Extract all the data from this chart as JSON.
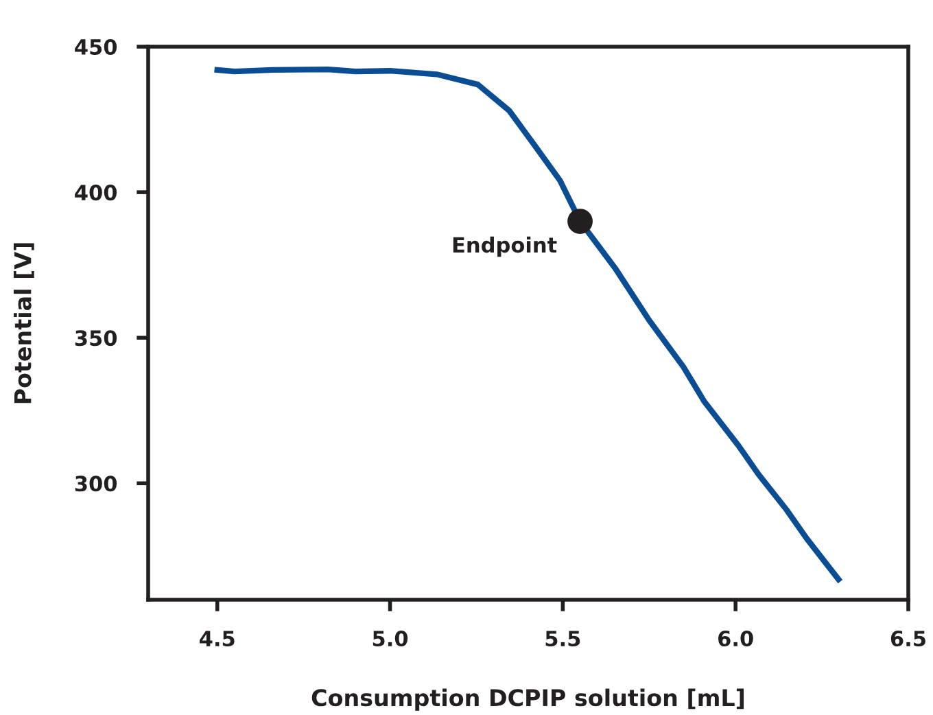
{
  "chart_data": {
    "type": "line",
    "xlabel": "Consumption DCPIP solution [mL]",
    "ylabel": "Potential [V]",
    "xlim": [
      4.3,
      6.5
    ],
    "xticks": [
      {
        "value": 4.5,
        "label": "4.5"
      },
      {
        "value": 5.0,
        "label": "5.0"
      },
      {
        "value": 5.5,
        "label": "5.5"
      },
      {
        "value": 6.0,
        "label": "6.0"
      },
      {
        "value": 6.5,
        "label": "6.5"
      }
    ],
    "ylim": [
      260,
      450
    ],
    "yticks": [
      300,
      350,
      400,
      450
    ],
    "grid": false,
    "legend": false,
    "series": [
      {
        "color": "#0a4d94",
        "marker": "none",
        "line_style": "solid",
        "x": [
          4.5,
          4.55,
          4.66,
          4.82,
          4.9,
          5.0,
          5.135,
          5.254,
          5.345,
          5.413,
          5.492,
          5.55,
          5.651,
          5.75,
          5.849,
          5.91,
          6.008,
          6.067,
          6.147,
          6.206,
          6.298
        ],
        "values": [
          442,
          441.5,
          442,
          442.2,
          441.5,
          441.7,
          440.5,
          437,
          428,
          417,
          404,
          390,
          374,
          356,
          340,
          328,
          313,
          303,
          291,
          281,
          267
        ]
      },
      {
        "type": "scatter",
        "color": "#231f20",
        "marker": "circle",
        "x": [
          5.55
        ],
        "values": [
          390
        ]
      }
    ],
    "annotations": [
      {
        "text": "Endpoint",
        "x": 5.55,
        "y": 390
      }
    ]
  }
}
